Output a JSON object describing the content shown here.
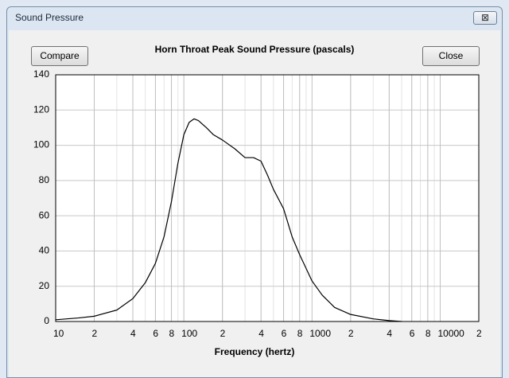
{
  "window": {
    "title": "Sound Pressure",
    "close_button": "⊠",
    "buttons": [
      "Compare",
      "Close"
    ]
  },
  "chart_data": {
    "type": "line",
    "title": "Horn Throat Peak Sound Pressure (pascals)",
    "x_label": "Frequency (hertz)",
    "x": [
      10,
      15,
      20,
      30,
      40,
      50,
      60,
      70,
      80,
      90,
      100,
      110,
      120,
      130,
      150,
      170,
      200,
      250,
      300,
      350,
      400,
      450,
      500,
      600,
      700,
      800,
      1000,
      1200,
      1500,
      2000,
      3000,
      4000,
      5000
    ],
    "values": [
      1,
      2,
      3,
      6.5,
      13,
      22,
      33,
      48,
      68,
      90,
      106,
      113,
      115,
      114,
      110,
      106,
      103,
      98,
      93,
      93,
      91,
      83,
      75,
      64,
      48,
      38,
      23,
      15,
      8,
      4,
      1.5,
      0.5,
      0
    ],
    "color": "#000000",
    "xscale": "log",
    "xlim": [
      10,
      20000
    ],
    "ylim": [
      0,
      140
    ],
    "xticks": [
      10,
      {
        "value": 20,
        "label": "2"
      },
      {
        "value": 40,
        "label": "4"
      },
      {
        "value": 60,
        "label": "6"
      },
      {
        "value": 80,
        "label": "8"
      },
      100,
      {
        "value": 200,
        "label": "2"
      },
      {
        "value": 400,
        "label": "4"
      },
      {
        "value": 600,
        "label": "6"
      },
      {
        "value": 800,
        "label": "8"
      },
      1000,
      {
        "value": 2000,
        "label": "2"
      },
      {
        "value": 4000,
        "label": "4"
      },
      {
        "value": 6000,
        "label": "6"
      },
      {
        "value": 8000,
        "label": "8"
      },
      10000,
      {
        "value": 20000,
        "label": "2"
      }
    ],
    "yticks": [
      0,
      20,
      40,
      60,
      80,
      100,
      120,
      140
    ],
    "grid": true,
    "minor_grid": true
  }
}
